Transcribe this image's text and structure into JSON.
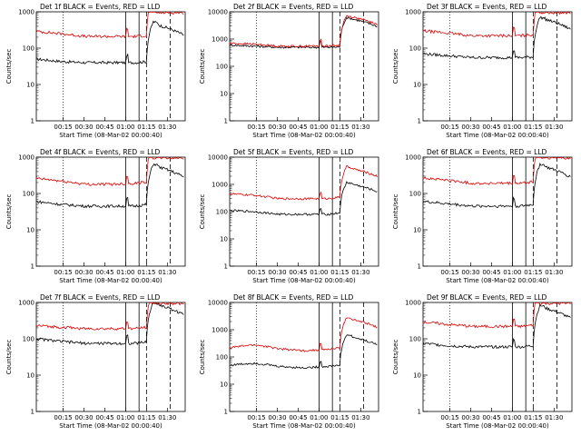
{
  "chart_data": [
    {
      "type": "line",
      "title": "Det 1f BLACK = Events, RED = LLD",
      "ylabel": "Counts/sec",
      "xlabel": "Start Time (08-Mar-02 00:00:40)",
      "yscale": "log",
      "ylim": [
        1,
        1000
      ],
      "yticks": [
        "1",
        "10",
        "100",
        "1000"
      ],
      "xticks": [
        "00:15",
        "00:30",
        "00:45",
        "01:00",
        "01:15",
        "01:30"
      ],
      "series": [
        {
          "name": "Events",
          "color": "#000000",
          "levels": [
            50,
            43,
            40,
            40,
            40,
            45,
            40
          ]
        },
        {
          "name": "LLD",
          "color": "#e00000",
          "levels": [
            290,
            250,
            210,
            210,
            210,
            240,
            210
          ]
        }
      ]
    },
    {
      "type": "line",
      "title": "Det 2f BLACK = Events, RED = LLD",
      "ylabel": "Counts/sec",
      "xlabel": "Start Time (08-Mar-02 00:00:40)",
      "yscale": "log",
      "ylim": [
        1,
        10000
      ],
      "yticks": [
        "1",
        "10",
        "100",
        "1000",
        "10000"
      ],
      "xticks": [
        "00:15",
        "00:30",
        "00:45",
        "01:00",
        "01:15",
        "01:30"
      ],
      "series": [
        {
          "name": "Events",
          "color": "#000000",
          "levels": [
            600,
            550,
            500,
            500,
            500,
            520,
            510
          ]
        },
        {
          "name": "LLD",
          "color": "#e00000",
          "levels": [
            700,
            650,
            550,
            550,
            570,
            600,
            600
          ]
        }
      ]
    },
    {
      "type": "line",
      "title": "Det 3f BLACK = Events, RED = LLD",
      "ylabel": "Counts/sec",
      "xlabel": "Start Time (08-Mar-02 00:00:40)",
      "yscale": "log",
      "ylim": [
        1,
        1000
      ],
      "yticks": [
        "1",
        "10",
        "100",
        "1000"
      ],
      "xticks": [
        "00:15",
        "00:30",
        "00:45",
        "01:00",
        "01:15",
        "01:30"
      ],
      "series": [
        {
          "name": "Events",
          "color": "#000000",
          "levels": [
            70,
            62,
            55,
            55,
            55,
            60,
            58
          ]
        },
        {
          "name": "LLD",
          "color": "#e00000",
          "levels": [
            300,
            260,
            220,
            220,
            220,
            250,
            230
          ]
        }
      ]
    },
    {
      "type": "line",
      "title": "Det 4f BLACK = Events, RED = LLD",
      "ylabel": "Counts/sec",
      "xlabel": "Start Time (08-Mar-02 00:00:40)",
      "yscale": "log",
      "ylim": [
        1,
        1000
      ],
      "yticks": [
        "1",
        "10",
        "100",
        "1000"
      ],
      "xticks": [
        "00:15",
        "00:30",
        "00:45",
        "01:00",
        "01:15",
        "01:30"
      ],
      "series": [
        {
          "name": "Events",
          "color": "#000000",
          "levels": [
            60,
            50,
            45,
            45,
            45,
            55,
            50
          ]
        },
        {
          "name": "LLD",
          "color": "#e00000",
          "levels": [
            260,
            220,
            180,
            180,
            190,
            230,
            210
          ]
        }
      ]
    },
    {
      "type": "line",
      "title": "Det 5f BLACK = Events, RED = LLD",
      "ylabel": "Counts/sec",
      "xlabel": "Start Time (08-Mar-02 00:00:40)",
      "yscale": "log",
      "ylim": [
        1,
        10000
      ],
      "yticks": [
        "1",
        "10",
        "100",
        "1000",
        "10000"
      ],
      "xticks": [
        "00:15",
        "00:30",
        "00:45",
        "01:00",
        "01:15",
        "01:30"
      ],
      "series": [
        {
          "name": "Events",
          "color": "#000000",
          "levels": [
            110,
            100,
            80,
            80,
            80,
            100,
            95
          ]
        },
        {
          "name": "LLD",
          "color": "#e00000",
          "levels": [
            450,
            400,
            300,
            300,
            300,
            380,
            350
          ]
        }
      ]
    },
    {
      "type": "line",
      "title": "Det 6f BLACK = Events, RED = LLD",
      "ylabel": "Counts/sec",
      "xlabel": "Start Time (08-Mar-02 00:00:40)",
      "yscale": "log",
      "ylim": [
        1,
        1000
      ],
      "yticks": [
        "1",
        "10",
        "100",
        "1000"
      ],
      "xticks": [
        "00:15",
        "00:30",
        "00:45",
        "01:00",
        "01:15",
        "01:30"
      ],
      "series": [
        {
          "name": "Events",
          "color": "#000000",
          "levels": [
            60,
            52,
            45,
            45,
            45,
            55,
            50
          ]
        },
        {
          "name": "LLD",
          "color": "#e00000",
          "levels": [
            270,
            230,
            190,
            190,
            190,
            230,
            210
          ]
        }
      ]
    },
    {
      "type": "line",
      "title": "Det 7f BLACK = Events, RED = LLD",
      "ylabel": "Counts/sec",
      "xlabel": "Start Time (08-Mar-02 00:00:40)",
      "yscale": "log",
      "ylim": [
        1,
        1000
      ],
      "yticks": [
        "1",
        "10",
        "100",
        "1000"
      ],
      "xticks": [
        "00:15",
        "00:30",
        "00:45",
        "01:00",
        "01:15",
        "01:30"
      ],
      "series": [
        {
          "name": "Events",
          "color": "#000000",
          "levels": [
            100,
            85,
            75,
            75,
            75,
            90,
            80
          ]
        },
        {
          "name": "LLD",
          "color": "#e00000",
          "levels": [
            230,
            210,
            190,
            190,
            190,
            230,
            210
          ]
        }
      ]
    },
    {
      "type": "line",
      "title": "Det 8f BLACK = Events, RED = LLD",
      "ylabel": "Counts/sec",
      "xlabel": "Start Time (08-Mar-02 00:00:40)",
      "yscale": "log",
      "ylim": [
        1,
        10000
      ],
      "yticks": [
        "1",
        "10",
        "100",
        "1000",
        "10000"
      ],
      "xticks": [
        "00:15",
        "00:30",
        "00:45",
        "01:00",
        "01:15",
        "01:30"
      ],
      "series": [
        {
          "name": "Events",
          "color": "#000000",
          "levels": [
            50,
            60,
            45,
            40,
            45,
            55,
            50
          ]
        },
        {
          "name": "LLD",
          "color": "#e00000",
          "levels": [
            220,
            280,
            200,
            170,
            190,
            240,
            220
          ]
        }
      ]
    },
    {
      "type": "line",
      "title": "Det 9f BLACK = Events, RED = LLD",
      "ylabel": "Counts/sec",
      "xlabel": "Start Time (08-Mar-02 00:00:40)",
      "yscale": "log",
      "ylim": [
        1,
        1000
      ],
      "yticks": [
        "1",
        "10",
        "100",
        "1000"
      ],
      "xticks": [
        "00:15",
        "00:30",
        "00:45",
        "01:00",
        "01:15",
        "01:30"
      ],
      "series": [
        {
          "name": "Events",
          "color": "#000000",
          "levels": [
            75,
            65,
            60,
            60,
            60,
            70,
            65
          ]
        },
        {
          "name": "LLD",
          "color": "#e00000",
          "levels": [
            290,
            250,
            220,
            220,
            220,
            260,
            240
          ]
        }
      ]
    }
  ]
}
